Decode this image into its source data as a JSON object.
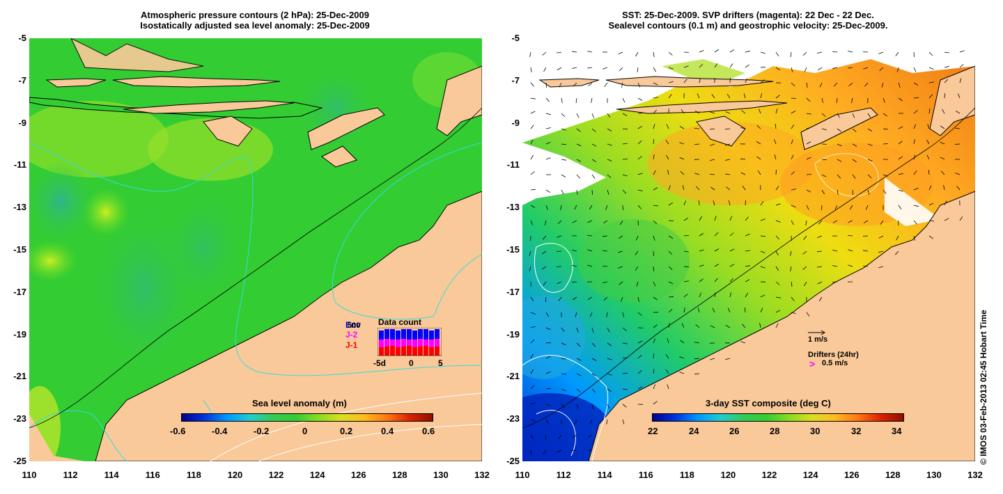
{
  "left_panel": {
    "title_line1": "Atmospheric pressure contours (2 hPa): 25-Dec-2009",
    "title_line2": "Isostatically adjusted sea level anomaly: 25-Dec-2009",
    "colorbar_title": "Sea level anomaly (m)",
    "colorbar_ticks": [
      "-0.6",
      "-0.4",
      "-0.2",
      "0",
      "0.2",
      "0.4",
      "0.6"
    ],
    "data_count": {
      "title": "Data count",
      "series_labels": [
        "Env",
        "J-2",
        "J-1"
      ],
      "series_colors": [
        "#0000ff",
        "#ff00ff",
        "#ff0000"
      ],
      "max_label": "500",
      "x_ticks": [
        "-5d",
        "0",
        "5"
      ]
    }
  },
  "right_panel": {
    "title_line1": "SST: 25-Dec-2009. SVP drifters (magenta): 22 Dec - 22 Dec.",
    "title_line2": "Sealevel contours (0.1 m) and geostrophic velocity: 25-Dec-2009.",
    "colorbar_title": "3-day SST composite (deg C)",
    "colorbar_ticks": [
      "22",
      "24",
      "26",
      "28",
      "30",
      "32",
      "34"
    ],
    "velocity_legend": "1 m/s",
    "drifters_label": "Drifters (24hr)",
    "drifters_speed": "0.5 m/s",
    "drifter_color": "#ff00ff"
  },
  "axes": {
    "lat_ticks": [
      "-5",
      "-7",
      "-9",
      "-11",
      "-13",
      "-15",
      "-17",
      "-19",
      "-21",
      "-23",
      "-25"
    ],
    "lon_ticks": [
      "110",
      "112",
      "114",
      "116",
      "118",
      "120",
      "122",
      "124",
      "126",
      "128",
      "130",
      "132"
    ]
  },
  "colors": {
    "land": "#f9c99a",
    "ocean_green": "#33cc33",
    "contour_cyan": "#33dddd"
  },
  "copyright": "© IMOS 03-Feb-2013 02:45 Hobart Time"
}
